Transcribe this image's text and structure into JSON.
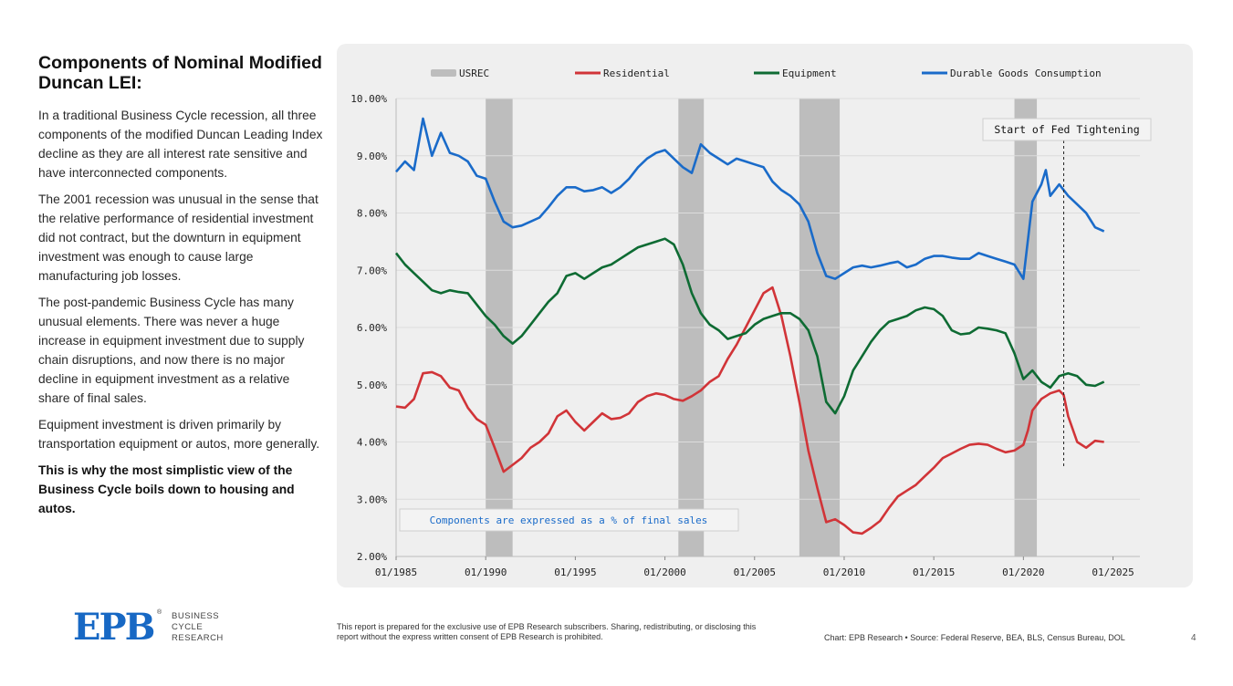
{
  "panel": {
    "title": "Components of Nominal Modified Duncan LEI:",
    "paragraphs": [
      "In a traditional Business Cycle recession, all three components of the modified Duncan Leading Index decline as they are all interest rate sensitive and have interconnected components.",
      "The 2001 recession was unusual in the sense that the relative performance of residential investment did not contract, but the downturn in equipment investment was enough to cause large manufacturing job losses.",
      "The post-pandemic Business Cycle has many unusual elements. There was never a huge increase in equipment investment due to supply chain disruptions, and now there is no major decline in equipment investment as a relative share of final sales.",
      "Equipment investment is driven primarily by transportation equipment or autos, more generally."
    ],
    "conclusion": "This is why the most simplistic view of the Business Cycle boils down to housing and autos."
  },
  "footer": {
    "logo": "EPB",
    "logo_sub": [
      "BUSINESS",
      "CYCLE",
      "RESEARCH"
    ],
    "disclaimer": "This report is prepared for the exclusive use of EPB Research subscribers. Sharing, redistributing, or disclosing this report without the express written consent of EPB Research is prohibited.",
    "source": "Chart: EPB Research  •  Source: Federal Reserve, BEA, BLS, Census Bureau, DOL",
    "page": "4"
  },
  "colors": {
    "residential": "#d13438",
    "equipment": "#0e6b33",
    "durable": "#1a6bc9",
    "recession": "#bdbdbd",
    "note": "#1a6bc9"
  },
  "chart_data": {
    "type": "line",
    "ylim": [
      2,
      10
    ],
    "xlim": [
      1985,
      2026.5
    ],
    "yticks": [
      "2.00%",
      "3.00%",
      "4.00%",
      "5.00%",
      "6.00%",
      "7.00%",
      "8.00%",
      "9.00%",
      "10.00%"
    ],
    "xticks": [
      "01/1985",
      "01/1990",
      "01/1995",
      "01/2000",
      "01/2005",
      "01/2010",
      "01/2015",
      "01/2020",
      "01/2025"
    ],
    "legend": [
      "USREC",
      "Residential",
      "Equipment",
      "Durable Goods Consumption"
    ],
    "legend_position": "top",
    "recessions": [
      [
        1990.0,
        1991.5
      ],
      [
        2000.75,
        2002.17
      ],
      [
        2007.5,
        2009.75
      ],
      [
        2019.5,
        2020.75
      ]
    ],
    "annotation": {
      "label": "Start of Fed Tightening",
      "x": 2022.25
    },
    "note": "Components are expressed as a % of final sales",
    "series": [
      {
        "name": "Residential",
        "points": [
          [
            1985,
            4.62
          ],
          [
            1985.5,
            4.6
          ],
          [
            1986,
            4.75
          ],
          [
            1986.5,
            5.2
          ],
          [
            1987,
            5.22
          ],
          [
            1987.5,
            5.15
          ],
          [
            1988,
            4.95
          ],
          [
            1988.5,
            4.9
          ],
          [
            1989,
            4.6
          ],
          [
            1989.5,
            4.4
          ],
          [
            1990,
            4.3
          ],
          [
            1990.5,
            3.9
          ],
          [
            1991,
            3.48
          ],
          [
            1991.5,
            3.6
          ],
          [
            1992,
            3.72
          ],
          [
            1992.5,
            3.9
          ],
          [
            1993,
            4.0
          ],
          [
            1993.5,
            4.15
          ],
          [
            1994,
            4.45
          ],
          [
            1994.5,
            4.55
          ],
          [
            1995,
            4.35
          ],
          [
            1995.5,
            4.2
          ],
          [
            1996,
            4.35
          ],
          [
            1996.5,
            4.5
          ],
          [
            1997,
            4.4
          ],
          [
            1997.5,
            4.42
          ],
          [
            1998,
            4.5
          ],
          [
            1998.5,
            4.7
          ],
          [
            1999,
            4.8
          ],
          [
            1999.5,
            4.85
          ],
          [
            2000,
            4.82
          ],
          [
            2000.5,
            4.75
          ],
          [
            2001,
            4.72
          ],
          [
            2001.5,
            4.8
          ],
          [
            2002,
            4.9
          ],
          [
            2002.5,
            5.05
          ],
          [
            2003,
            5.15
          ],
          [
            2003.5,
            5.45
          ],
          [
            2004,
            5.7
          ],
          [
            2004.5,
            6.0
          ],
          [
            2005,
            6.3
          ],
          [
            2005.5,
            6.6
          ],
          [
            2006,
            6.7
          ],
          [
            2006.5,
            6.2
          ],
          [
            2007,
            5.5
          ],
          [
            2007.5,
            4.7
          ],
          [
            2008,
            3.85
          ],
          [
            2008.5,
            3.2
          ],
          [
            2009,
            2.6
          ],
          [
            2009.5,
            2.65
          ],
          [
            2010,
            2.55
          ],
          [
            2010.5,
            2.42
          ],
          [
            2011,
            2.4
          ],
          [
            2011.5,
            2.5
          ],
          [
            2012,
            2.62
          ],
          [
            2012.5,
            2.85
          ],
          [
            2013,
            3.05
          ],
          [
            2013.5,
            3.15
          ],
          [
            2014,
            3.25
          ],
          [
            2014.5,
            3.4
          ],
          [
            2015,
            3.55
          ],
          [
            2015.5,
            3.72
          ],
          [
            2016,
            3.8
          ],
          [
            2016.5,
            3.88
          ],
          [
            2017,
            3.95
          ],
          [
            2017.5,
            3.97
          ],
          [
            2018,
            3.95
          ],
          [
            2018.5,
            3.88
          ],
          [
            2019,
            3.82
          ],
          [
            2019.5,
            3.85
          ],
          [
            2020,
            3.95
          ],
          [
            2020.25,
            4.2
          ],
          [
            2020.5,
            4.55
          ],
          [
            2021,
            4.75
          ],
          [
            2021.5,
            4.85
          ],
          [
            2022,
            4.9
          ],
          [
            2022.25,
            4.82
          ],
          [
            2022.5,
            4.45
          ],
          [
            2023,
            4.0
          ],
          [
            2023.5,
            3.9
          ],
          [
            2024,
            4.02
          ],
          [
            2024.5,
            4.0
          ]
        ]
      },
      {
        "name": "Equipment",
        "points": [
          [
            1985,
            7.3
          ],
          [
            1985.5,
            7.1
          ],
          [
            1986,
            6.95
          ],
          [
            1986.5,
            6.8
          ],
          [
            1987,
            6.65
          ],
          [
            1987.5,
            6.6
          ],
          [
            1988,
            6.65
          ],
          [
            1988.5,
            6.62
          ],
          [
            1989,
            6.6
          ],
          [
            1989.5,
            6.4
          ],
          [
            1990,
            6.2
          ],
          [
            1990.5,
            6.05
          ],
          [
            1991,
            5.85
          ],
          [
            1991.5,
            5.72
          ],
          [
            1992,
            5.85
          ],
          [
            1992.5,
            6.05
          ],
          [
            1993,
            6.25
          ],
          [
            1993.5,
            6.45
          ],
          [
            1994,
            6.6
          ],
          [
            1994.5,
            6.9
          ],
          [
            1995,
            6.95
          ],
          [
            1995.5,
            6.85
          ],
          [
            1996,
            6.95
          ],
          [
            1996.5,
            7.05
          ],
          [
            1997,
            7.1
          ],
          [
            1997.5,
            7.2
          ],
          [
            1998,
            7.3
          ],
          [
            1998.5,
            7.4
          ],
          [
            1999,
            7.45
          ],
          [
            1999.5,
            7.5
          ],
          [
            2000,
            7.55
          ],
          [
            2000.5,
            7.45
          ],
          [
            2001,
            7.1
          ],
          [
            2001.5,
            6.6
          ],
          [
            2002,
            6.25
          ],
          [
            2002.5,
            6.05
          ],
          [
            2003,
            5.95
          ],
          [
            2003.5,
            5.8
          ],
          [
            2004,
            5.85
          ],
          [
            2004.5,
            5.9
          ],
          [
            2005,
            6.05
          ],
          [
            2005.5,
            6.15
          ],
          [
            2006,
            6.2
          ],
          [
            2006.5,
            6.25
          ],
          [
            2007,
            6.25
          ],
          [
            2007.5,
            6.15
          ],
          [
            2008,
            5.95
          ],
          [
            2008.5,
            5.5
          ],
          [
            2009,
            4.7
          ],
          [
            2009.5,
            4.5
          ],
          [
            2010,
            4.8
          ],
          [
            2010.5,
            5.25
          ],
          [
            2011,
            5.5
          ],
          [
            2011.5,
            5.75
          ],
          [
            2012,
            5.95
          ],
          [
            2012.5,
            6.1
          ],
          [
            2013,
            6.15
          ],
          [
            2013.5,
            6.2
          ],
          [
            2014,
            6.3
          ],
          [
            2014.5,
            6.35
          ],
          [
            2015,
            6.32
          ],
          [
            2015.5,
            6.2
          ],
          [
            2016,
            5.95
          ],
          [
            2016.5,
            5.88
          ],
          [
            2017,
            5.9
          ],
          [
            2017.5,
            6.0
          ],
          [
            2018,
            5.98
          ],
          [
            2018.5,
            5.95
          ],
          [
            2019,
            5.9
          ],
          [
            2019.5,
            5.55
          ],
          [
            2020,
            5.1
          ],
          [
            2020.5,
            5.25
          ],
          [
            2021,
            5.05
          ],
          [
            2021.5,
            4.95
          ],
          [
            2022,
            5.15
          ],
          [
            2022.5,
            5.2
          ],
          [
            2023,
            5.15
          ],
          [
            2023.5,
            5.0
          ],
          [
            2024,
            4.98
          ],
          [
            2024.5,
            5.05
          ]
        ]
      },
      {
        "name": "Durable Goods Consumption",
        "points": [
          [
            1985,
            8.72
          ],
          [
            1985.5,
            8.9
          ],
          [
            1986,
            8.75
          ],
          [
            1986.5,
            9.65
          ],
          [
            1987,
            9.0
          ],
          [
            1987.5,
            9.4
          ],
          [
            1988,
            9.05
          ],
          [
            1988.5,
            9.0
          ],
          [
            1989,
            8.9
          ],
          [
            1989.5,
            8.65
          ],
          [
            1990,
            8.6
          ],
          [
            1990.5,
            8.2
          ],
          [
            1991,
            7.85
          ],
          [
            1991.5,
            7.75
          ],
          [
            1992,
            7.78
          ],
          [
            1992.5,
            7.85
          ],
          [
            1993,
            7.92
          ],
          [
            1993.5,
            8.1
          ],
          [
            1994,
            8.3
          ],
          [
            1994.5,
            8.45
          ],
          [
            1995,
            8.45
          ],
          [
            1995.5,
            8.38
          ],
          [
            1996,
            8.4
          ],
          [
            1996.5,
            8.45
          ],
          [
            1997,
            8.35
          ],
          [
            1997.5,
            8.45
          ],
          [
            1998,
            8.6
          ],
          [
            1998.5,
            8.8
          ],
          [
            1999,
            8.95
          ],
          [
            1999.5,
            9.05
          ],
          [
            2000,
            9.1
          ],
          [
            2000.5,
            8.95
          ],
          [
            2001,
            8.8
          ],
          [
            2001.5,
            8.7
          ],
          [
            2002,
            9.2
          ],
          [
            2002.5,
            9.05
          ],
          [
            2003,
            8.95
          ],
          [
            2003.5,
            8.85
          ],
          [
            2004,
            8.95
          ],
          [
            2004.5,
            8.9
          ],
          [
            2005,
            8.85
          ],
          [
            2005.5,
            8.8
          ],
          [
            2006,
            8.55
          ],
          [
            2006.5,
            8.4
          ],
          [
            2007,
            8.3
          ],
          [
            2007.5,
            8.15
          ],
          [
            2008,
            7.85
          ],
          [
            2008.5,
            7.3
          ],
          [
            2009,
            6.9
          ],
          [
            2009.5,
            6.85
          ],
          [
            2010,
            6.95
          ],
          [
            2010.5,
            7.05
          ],
          [
            2011,
            7.08
          ],
          [
            2011.5,
            7.05
          ],
          [
            2012,
            7.08
          ],
          [
            2012.5,
            7.12
          ],
          [
            2013,
            7.15
          ],
          [
            2013.5,
            7.05
          ],
          [
            2014,
            7.1
          ],
          [
            2014.5,
            7.2
          ],
          [
            2015,
            7.25
          ],
          [
            2015.5,
            7.25
          ],
          [
            2016,
            7.22
          ],
          [
            2016.5,
            7.2
          ],
          [
            2017,
            7.2
          ],
          [
            2017.5,
            7.3
          ],
          [
            2018,
            7.25
          ],
          [
            2018.5,
            7.2
          ],
          [
            2019,
            7.15
          ],
          [
            2019.5,
            7.1
          ],
          [
            2020,
            6.85
          ],
          [
            2020.5,
            8.2
          ],
          [
            2021,
            8.5
          ],
          [
            2021.25,
            8.75
          ],
          [
            2021.5,
            8.3
          ],
          [
            2022,
            8.5
          ],
          [
            2022.5,
            8.3
          ],
          [
            2023,
            8.15
          ],
          [
            2023.5,
            8.0
          ],
          [
            2024,
            7.75
          ],
          [
            2024.5,
            7.68
          ]
        ]
      }
    ]
  }
}
